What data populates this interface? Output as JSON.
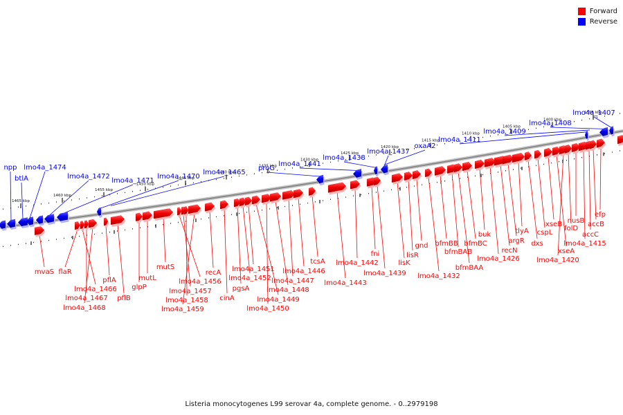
{
  "legend": [
    {
      "label": "Forward",
      "color": "#ff0000"
    },
    {
      "label": "Reverse",
      "color": "#0000ff"
    }
  ],
  "caption": "Listeria monocytogenes L99 serovar 4a, complete genome. - 0..2979198",
  "colors": {
    "forward": "#ff0000",
    "reverse": "#0000ff",
    "backbone": "#888888"
  },
  "ticks": [
    "1465 kbp",
    "1460 kbp",
    "1455 kbp",
    "1450 kbp",
    "1445 kbp",
    "1440 kbp",
    "1435 kbp",
    "1430 kbp",
    "1425 kbp",
    "1420 kbp",
    "1415 kbp",
    "1410 kbp",
    "1405 kbp",
    "1400 kbp",
    "1395 kbp"
  ],
  "reverse_genes": [
    "npp",
    "btlA",
    "lmo4a_1474",
    "lmo4a_1472",
    "lmo4a_1471",
    "lmo4a_1470",
    "lmo4a_1465",
    "proG",
    "lmo4a_1441",
    "lmo4a_1438",
    "lmo4a_1437",
    "oxaA2",
    "lmo4a_1411",
    "lmo4a_1409",
    "lmo4a_1408",
    "lmo4a_1407"
  ],
  "forward_genes": [
    "mvaS",
    "flaR",
    "lmo4a_1466",
    "lmo4a_1467",
    "lmo4a_1468",
    "pflA",
    "pflB",
    "glpP",
    "mutL",
    "mutS",
    "lmo4a_1456",
    "lmo4a_1457",
    "lmo4a_1458",
    "lmo4a_1459",
    "recA",
    "cinA",
    "pgsA",
    "lmo4a_1452",
    "lmo4a_1451",
    "lmo4a_1449",
    "lmo4a_1450",
    "lmo4a_1448",
    "lmo4a_1447",
    "lmo4a_1446",
    "tcsA",
    "lmo4a_1443",
    "lmo4a_1442",
    "fni",
    "lmo4a_1439",
    "lisK",
    "lisR",
    "gnd",
    "lmo4a_1432",
    "bfmBB",
    "bfmBAB",
    "bfmBAA",
    "bfmBC",
    "buk",
    "lmo4a_1426",
    "recN",
    "argR",
    "tlyA",
    "dxs",
    "cspL",
    "xseB",
    "xseA",
    "lmo4a_1420",
    "folD",
    "nusB",
    "lmo4a_1415",
    "accC",
    "accB",
    "efp"
  ]
}
